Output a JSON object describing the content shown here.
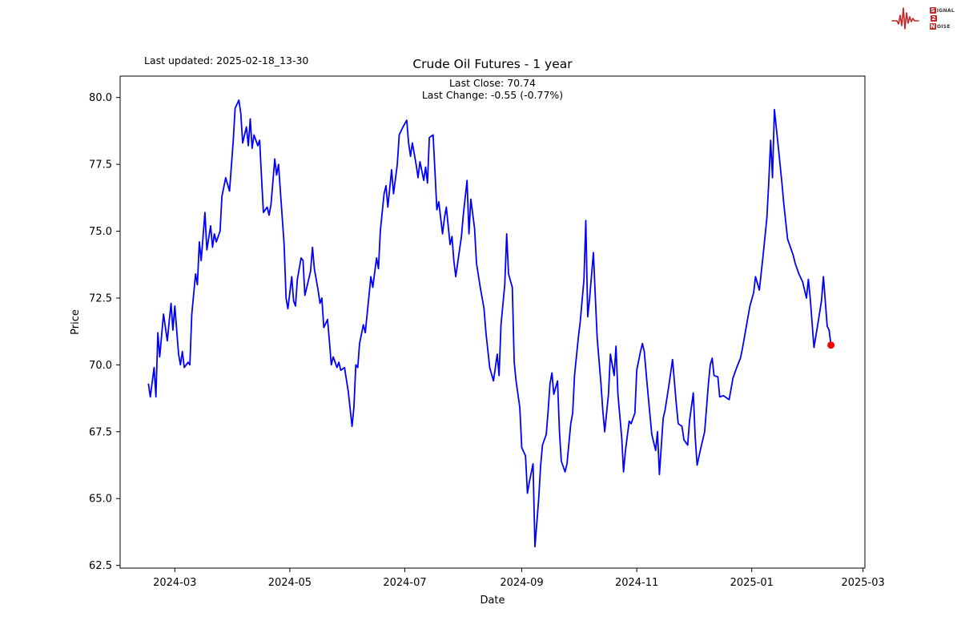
{
  "header": {
    "last_updated": "Last updated: 2025-02-18_13-30"
  },
  "logo": {
    "line1_box": "S",
    "line1_rest": "IGNAL",
    "line2_box": "2",
    "line2_rest": "",
    "line3_box": "N",
    "line3_rest": "OISE",
    "accent_color": "#c62828"
  },
  "chart_data": {
    "type": "line",
    "title": "Crude Oil Futures - 1 year",
    "subtitle_line1": "Last Close: 70.74",
    "subtitle_line2": "Last Change: -0.55 (-0.77%)",
    "last_close": 70.74,
    "last_change": -0.55,
    "last_change_pct": -0.77,
    "xlabel": "Date",
    "ylabel": "Price",
    "line_color": "#0000ff",
    "marker_color": "#ff0000",
    "axis_color": "#000000",
    "grid": false,
    "x_ticks": [
      "2024-03",
      "2024-05",
      "2024-07",
      "2024-09",
      "2024-11",
      "2025-01",
      "2025-03"
    ],
    "y_ticks": [
      62.5,
      65.0,
      67.5,
      70.0,
      72.5,
      75.0,
      77.5,
      80.0
    ],
    "x_domain": [
      "2024-02-01",
      "2025-03-02"
    ],
    "y_domain": [
      62.4,
      80.8
    ],
    "series": [
      {
        "name": "Crude Oil Futures price",
        "points": [
          [
            "2024-02-16",
            69.3
          ],
          [
            "2024-02-17",
            68.8
          ],
          [
            "2024-02-19",
            69.9
          ],
          [
            "2024-02-20",
            68.8
          ],
          [
            "2024-02-21",
            71.2
          ],
          [
            "2024-02-22",
            70.3
          ],
          [
            "2024-02-24",
            71.9
          ],
          [
            "2024-02-26",
            70.9
          ],
          [
            "2024-02-27",
            71.6
          ],
          [
            "2024-02-28",
            72.3
          ],
          [
            "2024-02-29",
            71.3
          ],
          [
            "2024-03-01",
            72.2
          ],
          [
            "2024-03-03",
            70.4
          ],
          [
            "2024-03-04",
            70.0
          ],
          [
            "2024-03-05",
            70.5
          ],
          [
            "2024-03-06",
            69.9
          ],
          [
            "2024-03-08",
            70.1
          ],
          [
            "2024-03-09",
            70.0
          ],
          [
            "2024-03-10",
            71.9
          ],
          [
            "2024-03-12",
            73.4
          ],
          [
            "2024-03-13",
            73.0
          ],
          [
            "2024-03-14",
            74.6
          ],
          [
            "2024-03-15",
            73.9
          ],
          [
            "2024-03-17",
            75.7
          ],
          [
            "2024-03-18",
            74.3
          ],
          [
            "2024-03-20",
            75.2
          ],
          [
            "2024-03-21",
            74.4
          ],
          [
            "2024-03-22",
            74.9
          ],
          [
            "2024-03-23",
            74.6
          ],
          [
            "2024-03-25",
            75.0
          ],
          [
            "2024-03-26",
            76.3
          ],
          [
            "2024-03-28",
            77.0
          ],
          [
            "2024-03-30",
            76.5
          ],
          [
            "2024-04-01",
            78.4
          ],
          [
            "2024-04-02",
            79.6
          ],
          [
            "2024-04-04",
            79.9
          ],
          [
            "2024-04-05",
            79.4
          ],
          [
            "2024-04-06",
            78.3
          ],
          [
            "2024-04-08",
            78.9
          ],
          [
            "2024-04-09",
            78.2
          ],
          [
            "2024-04-10",
            79.2
          ],
          [
            "2024-04-11",
            78.1
          ],
          [
            "2024-04-12",
            78.6
          ],
          [
            "2024-04-14",
            78.2
          ],
          [
            "2024-04-15",
            78.4
          ],
          [
            "2024-04-16",
            77.0
          ],
          [
            "2024-04-17",
            75.7
          ],
          [
            "2024-04-19",
            75.9
          ],
          [
            "2024-04-20",
            75.6
          ],
          [
            "2024-04-21",
            76.0
          ],
          [
            "2024-04-23",
            77.7
          ],
          [
            "2024-04-24",
            77.1
          ],
          [
            "2024-04-25",
            77.5
          ],
          [
            "2024-04-26",
            76.5
          ],
          [
            "2024-04-28",
            74.5
          ],
          [
            "2024-04-29",
            72.5
          ],
          [
            "2024-04-30",
            72.1
          ],
          [
            "2024-05-02",
            73.3
          ],
          [
            "2024-05-03",
            72.4
          ],
          [
            "2024-05-04",
            72.2
          ],
          [
            "2024-05-05",
            73.2
          ],
          [
            "2024-05-07",
            74.0
          ],
          [
            "2024-05-08",
            73.9
          ],
          [
            "2024-05-09",
            72.6
          ],
          [
            "2024-05-10",
            72.9
          ],
          [
            "2024-05-12",
            73.5
          ],
          [
            "2024-05-13",
            74.4
          ],
          [
            "2024-05-14",
            73.6
          ],
          [
            "2024-05-16",
            72.8
          ],
          [
            "2024-05-17",
            72.3
          ],
          [
            "2024-05-18",
            72.5
          ],
          [
            "2024-05-19",
            71.4
          ],
          [
            "2024-05-21",
            71.7
          ],
          [
            "2024-05-22",
            70.9
          ],
          [
            "2024-05-23",
            70.0
          ],
          [
            "2024-05-24",
            70.3
          ],
          [
            "2024-05-26",
            69.9
          ],
          [
            "2024-05-27",
            70.1
          ],
          [
            "2024-05-28",
            69.8
          ],
          [
            "2024-05-30",
            69.9
          ],
          [
            "2024-06-01",
            69.0
          ],
          [
            "2024-06-03",
            67.7
          ],
          [
            "2024-06-04",
            68.4
          ],
          [
            "2024-06-05",
            70.0
          ],
          [
            "2024-06-06",
            69.9
          ],
          [
            "2024-06-07",
            70.8
          ],
          [
            "2024-06-09",
            71.5
          ],
          [
            "2024-06-10",
            71.2
          ],
          [
            "2024-06-12",
            72.6
          ],
          [
            "2024-06-13",
            73.3
          ],
          [
            "2024-06-14",
            72.9
          ],
          [
            "2024-06-16",
            74.0
          ],
          [
            "2024-06-17",
            73.6
          ],
          [
            "2024-06-18",
            75.0
          ],
          [
            "2024-06-20",
            76.4
          ],
          [
            "2024-06-21",
            76.7
          ],
          [
            "2024-06-22",
            75.9
          ],
          [
            "2024-06-24",
            77.3
          ],
          [
            "2024-06-25",
            76.4
          ],
          [
            "2024-06-27",
            77.5
          ],
          [
            "2024-06-28",
            78.6
          ],
          [
            "2024-06-30",
            78.9
          ],
          [
            "2024-07-02",
            79.15
          ],
          [
            "2024-07-03",
            78.3
          ],
          [
            "2024-07-04",
            77.8
          ],
          [
            "2024-07-05",
            78.3
          ],
          [
            "2024-07-07",
            77.5
          ],
          [
            "2024-07-08",
            77.0
          ],
          [
            "2024-07-09",
            77.6
          ],
          [
            "2024-07-11",
            76.9
          ],
          [
            "2024-07-12",
            77.4
          ],
          [
            "2024-07-13",
            76.8
          ],
          [
            "2024-07-14",
            78.5
          ],
          [
            "2024-07-16",
            78.6
          ],
          [
            "2024-07-17",
            77.2
          ],
          [
            "2024-07-18",
            75.8
          ],
          [
            "2024-07-19",
            76.1
          ],
          [
            "2024-07-21",
            74.9
          ],
          [
            "2024-07-22",
            75.5
          ],
          [
            "2024-07-23",
            75.9
          ],
          [
            "2024-07-25",
            74.5
          ],
          [
            "2024-07-26",
            74.8
          ],
          [
            "2024-07-27",
            73.9
          ],
          [
            "2024-07-28",
            73.3
          ],
          [
            "2024-07-30",
            74.3
          ],
          [
            "2024-07-31",
            74.8
          ],
          [
            "2024-08-01",
            75.6
          ],
          [
            "2024-08-03",
            76.9
          ],
          [
            "2024-08-04",
            74.9
          ],
          [
            "2024-08-05",
            76.2
          ],
          [
            "2024-08-07",
            75.1
          ],
          [
            "2024-08-08",
            73.8
          ],
          [
            "2024-08-10",
            72.9
          ],
          [
            "2024-08-12",
            72.1
          ],
          [
            "2024-08-13",
            71.2
          ],
          [
            "2024-08-15",
            69.9
          ],
          [
            "2024-08-17",
            69.4
          ],
          [
            "2024-08-19",
            70.4
          ],
          [
            "2024-08-20",
            69.6
          ],
          [
            "2024-08-21",
            71.5
          ],
          [
            "2024-08-23",
            73.0
          ],
          [
            "2024-08-24",
            74.9
          ],
          [
            "2024-08-25",
            73.4
          ],
          [
            "2024-08-27",
            72.9
          ],
          [
            "2024-08-28",
            70.1
          ],
          [
            "2024-08-29",
            69.4
          ],
          [
            "2024-08-31",
            68.4
          ],
          [
            "2024-09-01",
            66.9
          ],
          [
            "2024-09-03",
            66.6
          ],
          [
            "2024-09-04",
            65.2
          ],
          [
            "2024-09-05",
            65.6
          ],
          [
            "2024-09-07",
            66.3
          ],
          [
            "2024-09-08",
            63.2
          ],
          [
            "2024-09-10",
            65.0
          ],
          [
            "2024-09-11",
            66.2
          ],
          [
            "2024-09-12",
            67.0
          ],
          [
            "2024-09-14",
            67.4
          ],
          [
            "2024-09-15",
            68.3
          ],
          [
            "2024-09-16",
            69.3
          ],
          [
            "2024-09-17",
            69.7
          ],
          [
            "2024-09-18",
            68.9
          ],
          [
            "2024-09-20",
            69.4
          ],
          [
            "2024-09-21",
            67.5
          ],
          [
            "2024-09-22",
            66.4
          ],
          [
            "2024-09-24",
            66.0
          ],
          [
            "2024-09-25",
            66.3
          ],
          [
            "2024-09-27",
            67.8
          ],
          [
            "2024-09-28",
            68.2
          ],
          [
            "2024-09-29",
            69.6
          ],
          [
            "2024-10-01",
            71.0
          ],
          [
            "2024-10-02",
            71.6
          ],
          [
            "2024-10-04",
            73.2
          ],
          [
            "2024-10-05",
            75.4
          ],
          [
            "2024-10-06",
            71.8
          ],
          [
            "2024-10-07",
            72.5
          ],
          [
            "2024-10-09",
            74.2
          ],
          [
            "2024-10-10",
            72.6
          ],
          [
            "2024-10-11",
            71.0
          ],
          [
            "2024-10-13",
            69.3
          ],
          [
            "2024-10-14",
            68.3
          ],
          [
            "2024-10-15",
            67.5
          ],
          [
            "2024-10-17",
            68.9
          ],
          [
            "2024-10-18",
            70.4
          ],
          [
            "2024-10-20",
            69.6
          ],
          [
            "2024-10-21",
            70.7
          ],
          [
            "2024-10-22",
            68.9
          ],
          [
            "2024-10-24",
            67.3
          ],
          [
            "2024-10-25",
            66.0
          ],
          [
            "2024-10-26",
            66.8
          ],
          [
            "2024-10-28",
            67.9
          ],
          [
            "2024-10-29",
            67.8
          ],
          [
            "2024-10-31",
            68.2
          ],
          [
            "2024-11-01",
            69.8
          ],
          [
            "2024-11-03",
            70.5
          ],
          [
            "2024-11-04",
            70.8
          ],
          [
            "2024-11-05",
            70.5
          ],
          [
            "2024-11-07",
            68.9
          ],
          [
            "2024-11-09",
            67.4
          ],
          [
            "2024-11-11",
            66.8
          ],
          [
            "2024-11-12",
            67.5
          ],
          [
            "2024-11-13",
            65.9
          ],
          [
            "2024-11-15",
            68.0
          ],
          [
            "2024-11-16",
            68.3
          ],
          [
            "2024-11-18",
            69.2
          ],
          [
            "2024-11-20",
            70.2
          ],
          [
            "2024-11-22",
            68.5
          ],
          [
            "2024-11-23",
            67.8
          ],
          [
            "2024-11-25",
            67.7
          ],
          [
            "2024-11-26",
            67.2
          ],
          [
            "2024-11-28",
            67.0
          ],
          [
            "2024-11-29",
            67.9
          ],
          [
            "2024-12-01",
            68.95
          ],
          [
            "2024-12-02",
            67.3
          ],
          [
            "2024-12-03",
            66.25
          ],
          [
            "2024-12-05",
            66.9
          ],
          [
            "2024-12-07",
            67.5
          ],
          [
            "2024-12-09",
            69.3
          ],
          [
            "2024-12-10",
            70.0
          ],
          [
            "2024-12-11",
            70.25
          ],
          [
            "2024-12-12",
            69.6
          ],
          [
            "2024-12-14",
            69.55
          ],
          [
            "2024-12-15",
            68.8
          ],
          [
            "2024-12-17",
            68.85
          ],
          [
            "2024-12-19",
            68.75
          ],
          [
            "2024-12-20",
            68.7
          ],
          [
            "2024-12-22",
            69.5
          ],
          [
            "2024-12-24",
            69.9
          ],
          [
            "2024-12-26",
            70.25
          ],
          [
            "2024-12-27",
            70.6
          ],
          [
            "2024-12-29",
            71.4
          ],
          [
            "2024-12-31",
            72.2
          ],
          [
            "2025-01-02",
            72.7
          ],
          [
            "2025-01-03",
            73.3
          ],
          [
            "2025-01-05",
            72.8
          ],
          [
            "2025-01-07",
            74.1
          ],
          [
            "2025-01-09",
            75.5
          ],
          [
            "2025-01-10",
            76.8
          ],
          [
            "2025-01-11",
            78.4
          ],
          [
            "2025-01-12",
            77.0
          ],
          [
            "2025-01-13",
            79.55
          ],
          [
            "2025-01-15",
            78.2
          ],
          [
            "2025-01-17",
            76.8
          ],
          [
            "2025-01-18",
            76.0
          ],
          [
            "2025-01-20",
            74.7
          ],
          [
            "2025-01-22",
            74.3
          ],
          [
            "2025-01-23",
            74.1
          ],
          [
            "2025-01-24",
            73.8
          ],
          [
            "2025-01-26",
            73.4
          ],
          [
            "2025-01-28",
            73.1
          ],
          [
            "2025-01-30",
            72.5
          ],
          [
            "2025-01-31",
            73.2
          ],
          [
            "2025-02-01",
            72.5
          ],
          [
            "2025-02-03",
            70.65
          ],
          [
            "2025-02-05",
            71.5
          ],
          [
            "2025-02-07",
            72.4
          ],
          [
            "2025-02-08",
            73.3
          ],
          [
            "2025-02-10",
            71.45
          ],
          [
            "2025-02-11",
            71.3
          ],
          [
            "2025-02-12",
            70.74
          ]
        ]
      }
    ]
  }
}
